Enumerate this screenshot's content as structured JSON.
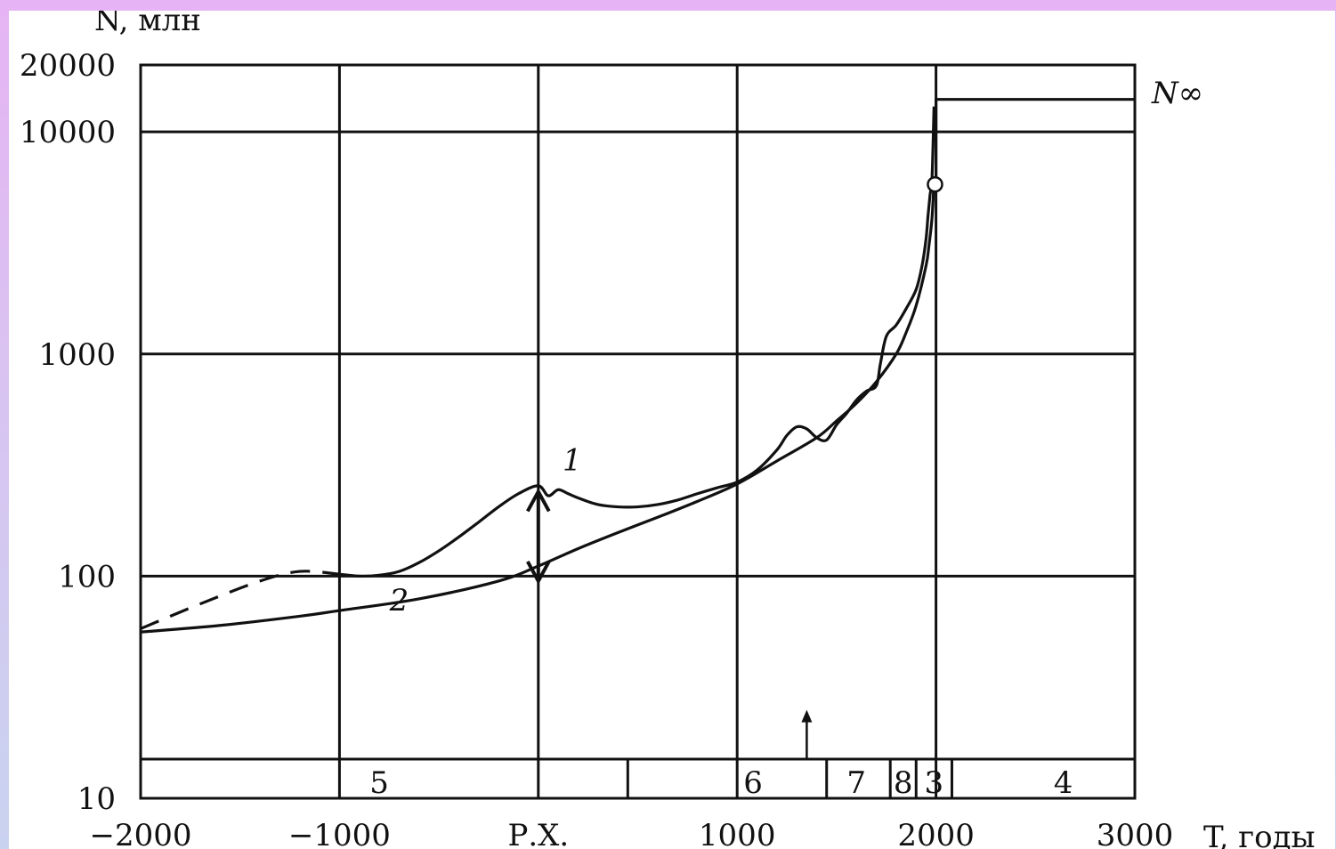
{
  "chart_data": {
    "type": "line",
    "xlabel": "T, годы",
    "ylabel": "N, млн",
    "y_scale": "log",
    "xlim": [
      -2000,
      3000
    ],
    "ylim": [
      10,
      20000
    ],
    "x_ticks": [
      {
        "value": -2000,
        "label": "−2000"
      },
      {
        "value": -1000,
        "label": "−1000"
      },
      {
        "value": 0,
        "label": "Р.Х."
      },
      {
        "value": 1000,
        "label": "1000"
      },
      {
        "value": 2000,
        "label": "2000"
      },
      {
        "value": 3000,
        "label": "3000"
      }
    ],
    "y_ticks": [
      {
        "value": 10,
        "label": "10"
      },
      {
        "value": 100,
        "label": "100"
      },
      {
        "value": 1000,
        "label": "1000"
      },
      {
        "value": 10000,
        "label": "10000"
      },
      {
        "value": 20000,
        "label": "20000"
      }
    ],
    "series": [
      {
        "label": "1",
        "style": "solid",
        "x": [
          -1000,
          -900,
          -800,
          -700,
          -600,
          -500,
          -400,
          -300,
          -200,
          -100,
          0,
          50,
          100,
          150,
          200,
          300,
          400,
          500,
          600,
          700,
          800,
          900,
          1000,
          1100,
          1200,
          1250,
          1300,
          1350,
          1400,
          1450,
          1500,
          1550,
          1600,
          1650,
          1700,
          1720,
          1750,
          1800,
          1850,
          1900,
          1930,
          1950,
          1960,
          1970,
          1980,
          1990
        ],
        "y": [
          102,
          100,
          101,
          105,
          115,
          130,
          150,
          175,
          205,
          235,
          255,
          230,
          245,
          235,
          225,
          210,
          205,
          205,
          210,
          220,
          235,
          250,
          265,
          300,
          370,
          430,
          470,
          460,
          420,
          410,
          480,
          540,
          620,
          680,
          720,
          900,
          1200,
          1350,
          1600,
          1950,
          2500,
          3300,
          4200,
          5200,
          6200,
          13000
        ]
      },
      {
        "label": "1 (dashed extension)",
        "style": "dashed",
        "x": [
          -2000,
          -1700,
          -1400,
          -1200,
          -1000
        ],
        "y": [
          58,
          75,
          95,
          105,
          102
        ]
      },
      {
        "label": "2",
        "style": "solid",
        "x": [
          -2000,
          -1600,
          -1200,
          -1000,
          -600,
          -200,
          0,
          200,
          400,
          600,
          800,
          1000,
          1200,
          1400,
          1500,
          1600,
          1700,
          1800,
          1850,
          1900,
          1950,
          1965,
          1980,
          1990
        ],
        "y": [
          56,
          60,
          66,
          70,
          79,
          95,
          111,
          133,
          157,
          184,
          217,
          260,
          330,
          420,
          500,
          600,
          750,
          1000,
          1250,
          1650,
          2500,
          3100,
          4100,
          6000
        ]
      },
      {
        "label": "N∞",
        "style": "solid",
        "x": [
          2000,
          3000
        ],
        "y": [
          14000,
          14000
        ]
      }
    ],
    "point": {
      "x": 1995,
      "y": 5800
    },
    "double_arrow": {
      "x": 0,
      "y_low": 95,
      "y_high": 240
    },
    "up_arrow": {
      "x": 1350,
      "y_from": 15,
      "y_to": 25
    },
    "curve_labels": [
      {
        "text": "1",
        "x": 170,
        "y": 300
      },
      {
        "text": "2",
        "x": -700,
        "y": 70
      }
    ],
    "n_inf_label": "N∞",
    "bottom_band": {
      "y_range": [
        10,
        15
      ],
      "dividers": [
        450,
        1450,
        1770,
        1900,
        2080
      ],
      "labels": [
        {
          "text": "5",
          "x": -800
        },
        {
          "text": "6",
          "x": 1080
        },
        {
          "text": "7",
          "x": 1600
        },
        {
          "text": "8",
          "x": 1835
        },
        {
          "text": "3",
          "x": 1990
        },
        {
          "text": "4",
          "x": 2640
        }
      ]
    },
    "grid": true
  }
}
